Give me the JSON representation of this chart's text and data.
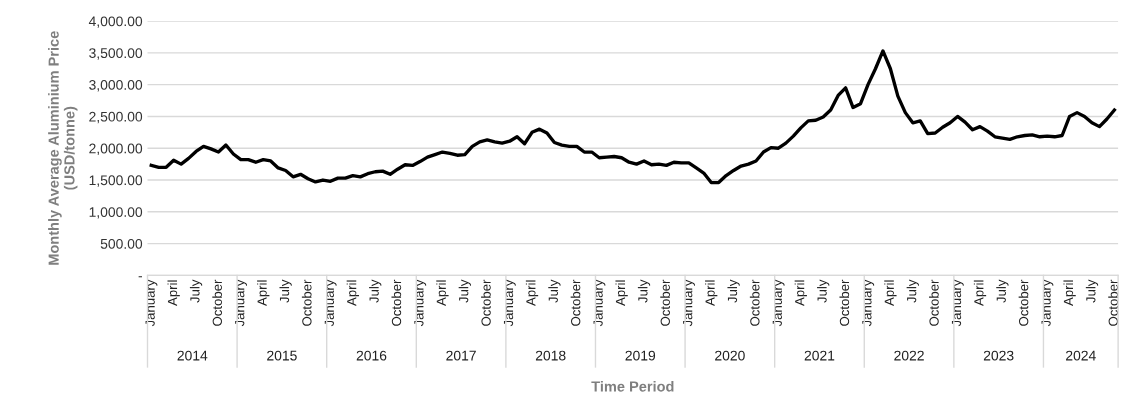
{
  "chart_data": {
    "type": "line",
    "xlabel": "Time Period",
    "ylabel": "Monthly Average Aluminium Price\n(USD/tonne)",
    "categories": [
      "January",
      null,
      null,
      "April",
      null,
      null,
      "July",
      null,
      null,
      "October",
      null,
      null,
      "January",
      null,
      null,
      "April",
      null,
      null,
      "July",
      null,
      null,
      "October",
      null,
      null,
      "January",
      null,
      null,
      "April",
      null,
      null,
      "July",
      null,
      null,
      "October",
      null,
      null,
      "January",
      null,
      null,
      "April",
      null,
      null,
      "July",
      null,
      null,
      "October",
      null,
      null,
      "January",
      null,
      null,
      "April",
      null,
      null,
      "July",
      null,
      null,
      "October",
      null,
      null,
      "January",
      null,
      null,
      "April",
      null,
      null,
      "July",
      null,
      null,
      "October",
      null,
      null,
      "January",
      null,
      null,
      "April",
      null,
      null,
      "July",
      null,
      null,
      "October",
      null,
      null,
      "January",
      null,
      null,
      "April",
      null,
      null,
      "July",
      null,
      null,
      "October",
      null,
      null,
      "January",
      null,
      null,
      "April",
      null,
      null,
      "July",
      null,
      null,
      "October",
      null,
      null,
      "January",
      null,
      null,
      "April",
      null,
      null,
      "July",
      null,
      null,
      "October",
      null,
      null,
      "January",
      null,
      null,
      "April",
      null,
      null,
      "July",
      null,
      null,
      "October"
    ],
    "annotations": [
      "2014",
      "2015",
      "2016",
      "2017",
      "2018",
      "2019",
      "2020",
      "2021",
      "2022",
      "2023",
      "2024"
    ],
    "series": [
      {
        "color": "#000000",
        "values": [
          1730,
          1700,
          1700,
          1810,
          1750,
          1840,
          1950,
          2030,
          1990,
          1940,
          2050,
          1910,
          1820,
          1820,
          1780,
          1820,
          1800,
          1690,
          1650,
          1550,
          1590,
          1520,
          1470,
          1500,
          1480,
          1530,
          1530,
          1570,
          1550,
          1600,
          1630,
          1640,
          1590,
          1670,
          1740,
          1730,
          1790,
          1860,
          1900,
          1940,
          1920,
          1890,
          1900,
          2030,
          2100,
          2130,
          2100,
          2080,
          2110,
          2180,
          2070,
          2250,
          2300,
          2240,
          2090,
          2050,
          2030,
          2030,
          1940,
          1940,
          1850,
          1860,
          1870,
          1850,
          1780,
          1750,
          1800,
          1740,
          1750,
          1730,
          1780,
          1770,
          1770,
          1690,
          1610,
          1460,
          1460,
          1570,
          1650,
          1720,
          1750,
          1800,
          1940,
          2010,
          2000,
          2080,
          2190,
          2320,
          2430,
          2440,
          2490,
          2600,
          2830,
          2950,
          2640,
          2700,
          3000,
          3250,
          3530,
          3250,
          2820,
          2560,
          2400,
          2430,
          2230,
          2240,
          2330,
          2400,
          2500,
          2410,
          2290,
          2340,
          2270,
          2180,
          2160,
          2140,
          2180,
          2200,
          2210,
          2180,
          2190,
          2180,
          2200,
          2500,
          2560,
          2500,
          2400,
          2340,
          2460,
          2600
        ]
      }
    ],
    "ylim": [
      0,
      4000
    ],
    "yticks": [
      {
        "value": 0,
        "label": "-"
      },
      {
        "value": 500,
        "label": "500.00"
      },
      {
        "value": 1000,
        "label": "1,000.00"
      },
      {
        "value": 1500,
        "label": "1,500.00"
      },
      {
        "value": 2000,
        "label": "2,000.00"
      },
      {
        "value": 2500,
        "label": "2,500.00"
      },
      {
        "value": 3000,
        "label": "3,000.00"
      },
      {
        "value": 3500,
        "label": "3,500.00"
      },
      {
        "value": 4000,
        "label": "4,000.00"
      }
    ],
    "grid": "y",
    "marker": "none",
    "line_style": "solid"
  }
}
